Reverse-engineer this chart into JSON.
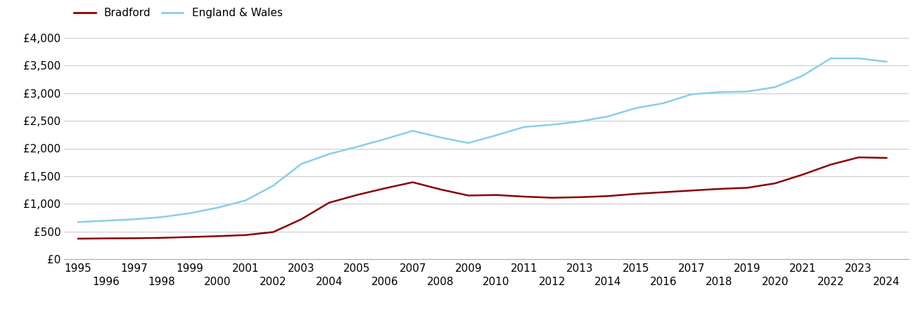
{
  "years": [
    1995,
    1996,
    1997,
    1998,
    1999,
    2000,
    2001,
    2002,
    2003,
    2004,
    2005,
    2006,
    2007,
    2008,
    2009,
    2010,
    2011,
    2012,
    2013,
    2014,
    2015,
    2016,
    2017,
    2018,
    2019,
    2020,
    2021,
    2022,
    2023,
    2024
  ],
  "bradford": [
    370,
    375,
    378,
    385,
    400,
    415,
    435,
    490,
    720,
    1020,
    1160,
    1280,
    1390,
    1260,
    1150,
    1160,
    1130,
    1110,
    1120,
    1140,
    1180,
    1210,
    1240,
    1270,
    1290,
    1370,
    1530,
    1710,
    1840,
    1830
  ],
  "england_wales": [
    670,
    695,
    720,
    760,
    830,
    930,
    1060,
    1330,
    1720,
    1900,
    2030,
    2170,
    2320,
    2200,
    2100,
    2240,
    2390,
    2430,
    2490,
    2580,
    2730,
    2820,
    2980,
    3020,
    3030,
    3110,
    3320,
    3630,
    3630,
    3570
  ],
  "bradford_color": "#8b0000",
  "england_wales_color": "#87CEEB",
  "background_color": "#ffffff",
  "ylim": [
    0,
    4000
  ],
  "yticks": [
    0,
    500,
    1000,
    1500,
    2000,
    2500,
    3000,
    3500,
    4000
  ],
  "grid_color": "#cccccc",
  "line_width": 1.8,
  "legend_labels": [
    "Bradford",
    "England & Wales"
  ],
  "odd_years": [
    1995,
    1997,
    1999,
    2001,
    2003,
    2005,
    2007,
    2009,
    2011,
    2013,
    2015,
    2017,
    2019,
    2021,
    2023
  ],
  "even_years": [
    1996,
    1998,
    2000,
    2002,
    2004,
    2006,
    2008,
    2010,
    2012,
    2014,
    2016,
    2018,
    2020,
    2022,
    2024
  ],
  "xlim": [
    1994.5,
    2024.8
  ],
  "tick_fontsize": 11,
  "legend_fontsize": 11
}
